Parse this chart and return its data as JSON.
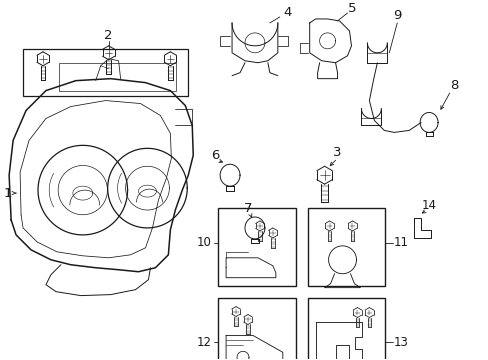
{
  "bg_color": "#ffffff",
  "line_color": "#1a1a1a",
  "fig_width": 4.89,
  "fig_height": 3.6,
  "dpi": 100,
  "label_fs": 8.5,
  "lw": 0.7
}
